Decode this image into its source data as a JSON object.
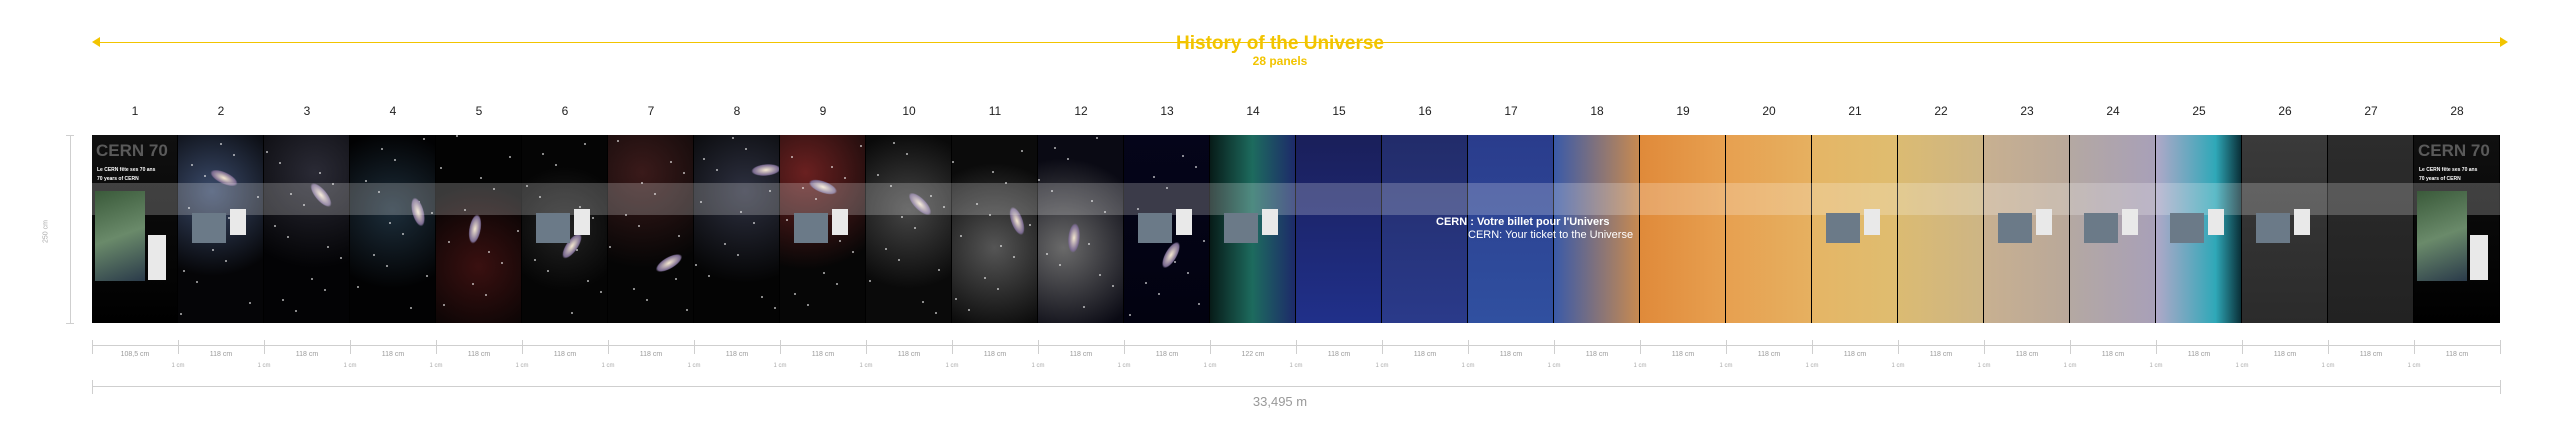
{
  "header": {
    "title": "History of the Universe",
    "subtitle": "28 panels"
  },
  "panels": [
    {
      "n": "1",
      "w": "108,5 cm"
    },
    {
      "n": "2",
      "w": "118 cm"
    },
    {
      "n": "3",
      "w": "118 cm"
    },
    {
      "n": "4",
      "w": "118 cm"
    },
    {
      "n": "5",
      "w": "118 cm"
    },
    {
      "n": "6",
      "w": "118 cm"
    },
    {
      "n": "7",
      "w": "118 cm"
    },
    {
      "n": "8",
      "w": "118 cm"
    },
    {
      "n": "9",
      "w": "118 cm"
    },
    {
      "n": "10",
      "w": "118 cm"
    },
    {
      "n": "11",
      "w": "118 cm"
    },
    {
      "n": "12",
      "w": "118 cm"
    },
    {
      "n": "13",
      "w": "118 cm"
    },
    {
      "n": "14",
      "w": "122 cm"
    },
    {
      "n": "15",
      "w": "118 cm"
    },
    {
      "n": "16",
      "w": "118 cm"
    },
    {
      "n": "17",
      "w": "118 cm"
    },
    {
      "n": "18",
      "w": "118 cm"
    },
    {
      "n": "19",
      "w": "118 cm"
    },
    {
      "n": "20",
      "w": "118 cm"
    },
    {
      "n": "21",
      "w": "118 cm"
    },
    {
      "n": "22",
      "w": "118 cm"
    },
    {
      "n": "23",
      "w": "118 cm"
    },
    {
      "n": "24",
      "w": "118 cm"
    },
    {
      "n": "25",
      "w": "118 cm"
    },
    {
      "n": "26",
      "w": "118 cm"
    },
    {
      "n": "27",
      "w": "118 cm"
    },
    {
      "n": "28",
      "w": "118 cm"
    }
  ],
  "gap_label": "1 cm",
  "height_label": "250 cm",
  "total_length": "33,495 m",
  "banner": {
    "fr": "CERN : Votre billet pour l'Univers",
    "en": "CERN: Your ticket to the Universe"
  },
  "logo_text": "CERN 70",
  "end_panel_text": [
    "Le CERN fête ses 70 ans",
    "70 years of CERN"
  ],
  "colors": {
    "accent": "#f2c400",
    "dim": "#cfcfcf"
  }
}
